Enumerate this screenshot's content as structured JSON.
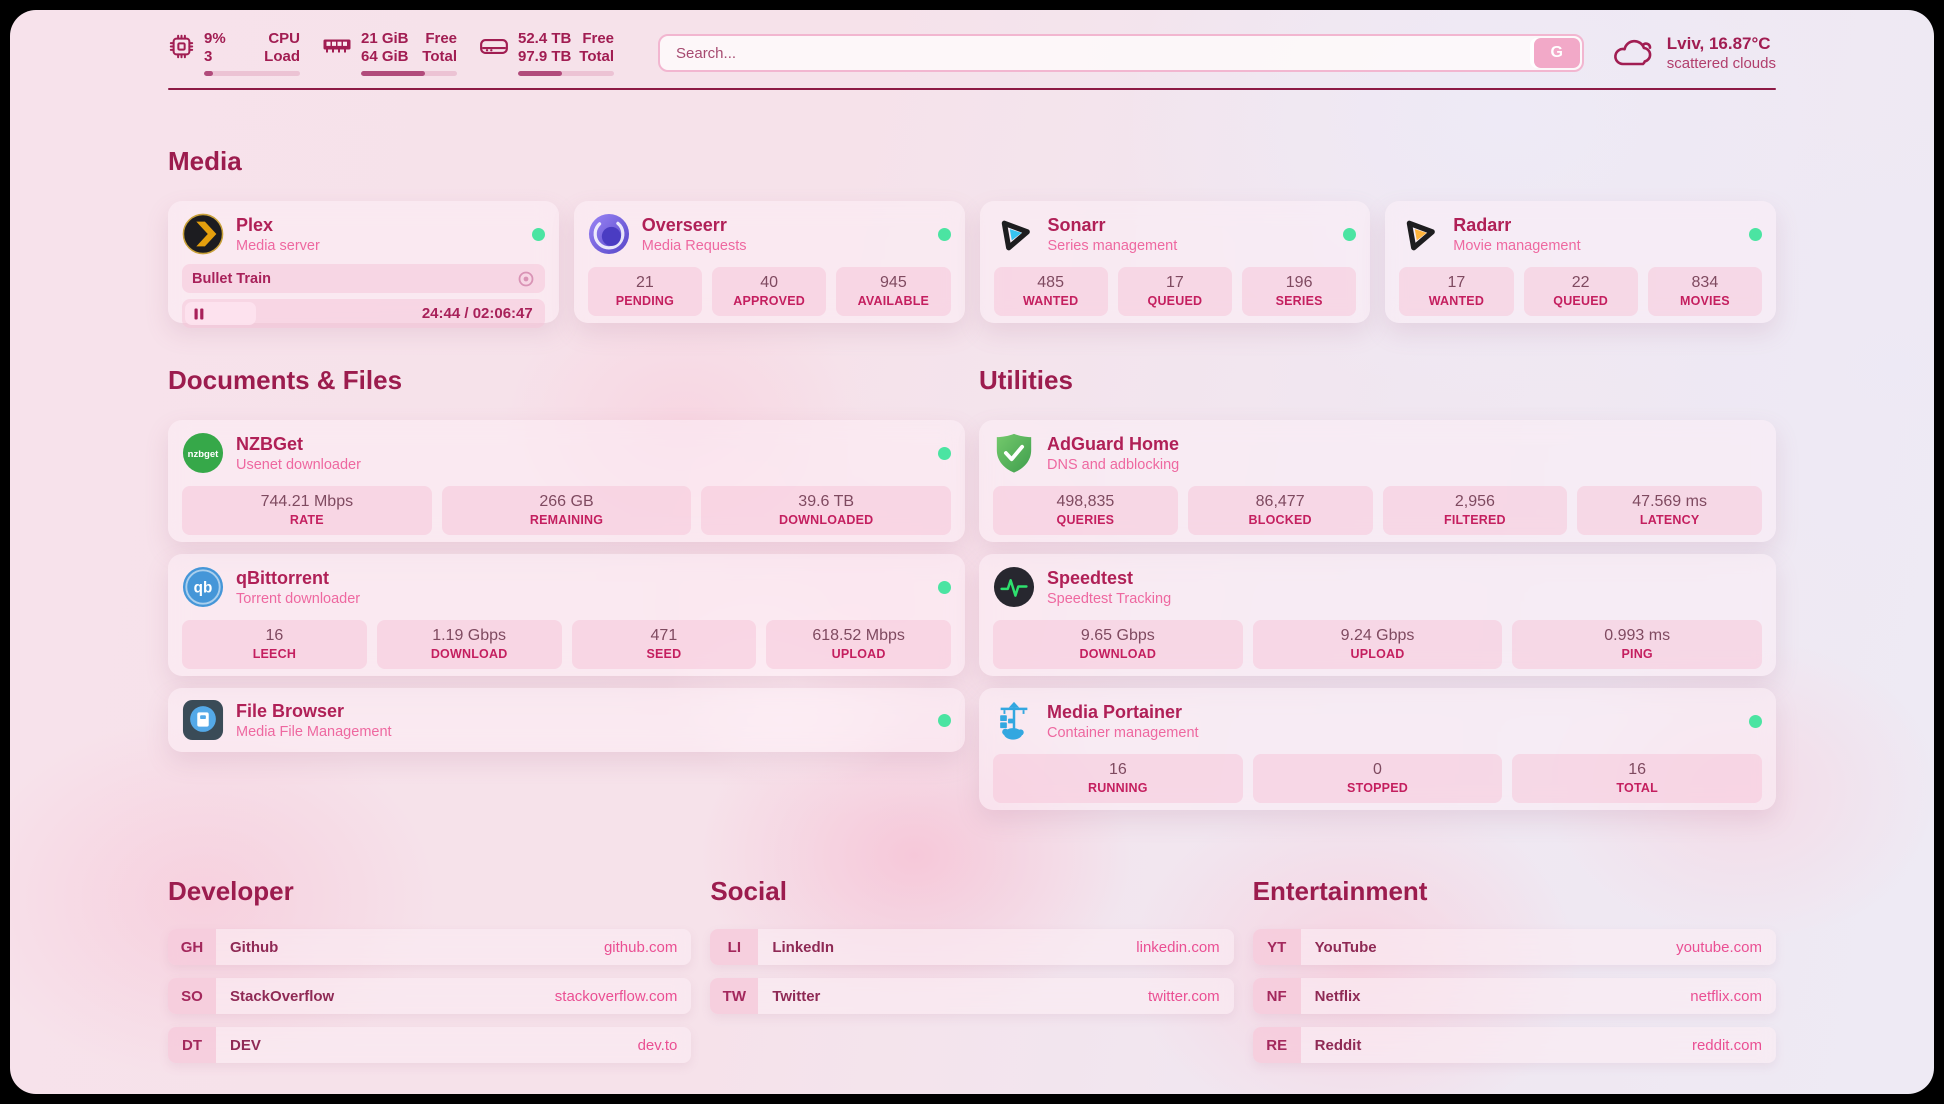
{
  "topbar": {
    "cpu": {
      "values": [
        "9%",
        "3"
      ],
      "labels": [
        "CPU",
        "Load"
      ],
      "progress": 9
    },
    "memory": {
      "values": [
        "21 GiB",
        "64 GiB"
      ],
      "labels": [
        "Free",
        "Total"
      ],
      "progress": 67
    },
    "disk": {
      "values": [
        "52.4 TB",
        "97.9 TB"
      ],
      "labels": [
        "Free",
        "Total"
      ],
      "progress": 46
    },
    "search": {
      "placeholder": "Search...",
      "button_label": "G"
    },
    "weather": {
      "location_temp": "Lviv, 16.87°C",
      "condition": "scattered clouds"
    }
  },
  "sections": {
    "media": {
      "title": "Media",
      "cards": {
        "plex": {
          "title": "Plex",
          "subtitle": "Media server",
          "online": true,
          "now_playing": {
            "title": "Bullet Train",
            "time": "24:44 / 02:06:47",
            "progress": 19.5,
            "state": "paused"
          }
        },
        "overseerr": {
          "title": "Overseerr",
          "subtitle": "Media Requests",
          "online": true,
          "stats": [
            {
              "value": "21",
              "label": "PENDING"
            },
            {
              "value": "40",
              "label": "APPROVED"
            },
            {
              "value": "945",
              "label": "AVAILABLE"
            }
          ]
        },
        "sonarr": {
          "title": "Sonarr",
          "subtitle": "Series management",
          "online": true,
          "stats": [
            {
              "value": "485",
              "label": "WANTED"
            },
            {
              "value": "17",
              "label": "QUEUED"
            },
            {
              "value": "196",
              "label": "SERIES"
            }
          ]
        },
        "radarr": {
          "title": "Radarr",
          "subtitle": "Movie management",
          "online": true,
          "stats": [
            {
              "value": "17",
              "label": "WANTED"
            },
            {
              "value": "22",
              "label": "QUEUED"
            },
            {
              "value": "834",
              "label": "MOVIES"
            }
          ]
        }
      }
    },
    "documents": {
      "title": "Documents & Files",
      "cards": {
        "nzbget": {
          "title": "NZBGet",
          "subtitle": "Usenet downloader",
          "online": true,
          "icon_text": "nzbget",
          "stats": [
            {
              "value": "744.21 Mbps",
              "label": "RATE"
            },
            {
              "value": "266 GB",
              "label": "REMAINING"
            },
            {
              "value": "39.6 TB",
              "label": "DOWNLOADED"
            }
          ]
        },
        "qbittorrent": {
          "title": "qBittorrent",
          "subtitle": "Torrent downloader",
          "online": true,
          "icon_text": "qb",
          "stats": [
            {
              "value": "16",
              "label": "LEECH"
            },
            {
              "value": "1.19 Gbps",
              "label": "DOWNLOAD"
            },
            {
              "value": "471",
              "label": "SEED"
            },
            {
              "value": "618.52 Mbps",
              "label": "UPLOAD"
            }
          ]
        },
        "filebrowser": {
          "title": "File Browser",
          "subtitle": "Media File Management",
          "online": true
        }
      }
    },
    "utilities": {
      "title": "Utilities",
      "cards": {
        "adguard": {
          "title": "AdGuard Home",
          "subtitle": "DNS and adblocking",
          "stats": [
            {
              "value": "498,835",
              "label": "QUERIES"
            },
            {
              "value": "86,477",
              "label": "BLOCKED"
            },
            {
              "value": "2,956",
              "label": "FILTERED"
            },
            {
              "value": "47.569 ms",
              "label": "LATENCY"
            }
          ]
        },
        "speedtest": {
          "title": "Speedtest",
          "subtitle": "Speedtest Tracking",
          "stats": [
            {
              "value": "9.65 Gbps",
              "label": "DOWNLOAD"
            },
            {
              "value": "9.24 Gbps",
              "label": "UPLOAD"
            },
            {
              "value": "0.993 ms",
              "label": "PING"
            }
          ]
        },
        "portainer": {
          "title": "Media Portainer",
          "subtitle": "Container management",
          "online": true,
          "stats": [
            {
              "value": "16",
              "label": "RUNNING"
            },
            {
              "value": "0",
              "label": "STOPPED"
            },
            {
              "value": "16",
              "label": "TOTAL"
            }
          ]
        }
      }
    },
    "links": [
      {
        "title": "Developer",
        "items": [
          {
            "abbr": "GH",
            "name": "Github",
            "url": "github.com"
          },
          {
            "abbr": "SO",
            "name": "StackOverflow",
            "url": "stackoverflow.com"
          },
          {
            "abbr": "DT",
            "name": "DEV",
            "url": "dev.to"
          }
        ]
      },
      {
        "title": "Social",
        "items": [
          {
            "abbr": "LI",
            "name": "LinkedIn",
            "url": "linkedin.com"
          },
          {
            "abbr": "TW",
            "name": "Twitter",
            "url": "twitter.com"
          }
        ]
      },
      {
        "title": "Entertainment",
        "items": [
          {
            "abbr": "YT",
            "name": "YouTube",
            "url": "youtube.com"
          },
          {
            "abbr": "NF",
            "name": "Netflix",
            "url": "netflix.com"
          },
          {
            "abbr": "RE",
            "name": "Reddit",
            "url": "reddit.com"
          }
        ]
      }
    ]
  },
  "colors": {
    "accent": "#a11d52",
    "status_online": "#4be4a2",
    "stat_label": "#c41f5f",
    "link_url": "#ea4f93",
    "plex_gold": "#e5a00d",
    "sonarr_blue": "#36c3f1",
    "radarr_yellow": "#ffb53c",
    "adguard_green": "#4caf50",
    "portainer_blue": "#33a7e0"
  }
}
